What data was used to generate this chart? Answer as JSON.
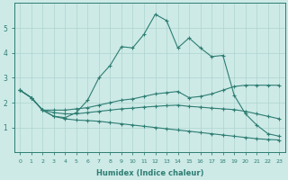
{
  "xlabel": "Humidex (Indice chaleur)",
  "background_color": "#cdeae7",
  "grid_color": "#aed4cf",
  "line_color": "#2e7d72",
  "xlim": [
    -0.5,
    23.5
  ],
  "ylim": [
    0,
    6.0
  ],
  "yticks": [
    1,
    2,
    3,
    4,
    5
  ],
  "xticks": [
    0,
    1,
    2,
    3,
    4,
    5,
    6,
    7,
    8,
    9,
    10,
    11,
    12,
    13,
    14,
    15,
    16,
    17,
    18,
    19,
    20,
    21,
    22,
    23
  ],
  "line1_x": [
    0,
    1,
    2,
    3,
    4,
    5,
    6,
    7,
    8,
    9,
    10,
    11,
    12,
    13,
    14,
    15,
    16,
    17,
    18,
    19,
    20,
    21,
    22,
    23
  ],
  "line1_y": [
    2.5,
    2.2,
    1.7,
    1.45,
    1.4,
    1.6,
    2.1,
    3.0,
    3.5,
    4.25,
    4.2,
    4.75,
    5.55,
    5.3,
    4.2,
    4.6,
    4.2,
    3.85,
    3.9,
    2.3,
    1.55,
    1.1,
    0.75,
    0.65
  ],
  "line2_x": [
    0,
    1,
    2,
    3,
    4,
    5,
    6,
    7,
    8,
    9,
    10,
    11,
    12,
    13,
    14,
    15,
    16,
    17,
    18,
    19,
    20,
    21,
    22,
    23
  ],
  "line2_y": [
    2.5,
    2.2,
    1.7,
    1.7,
    1.7,
    1.75,
    1.8,
    1.9,
    2.0,
    2.1,
    2.15,
    2.25,
    2.35,
    2.4,
    2.45,
    2.2,
    2.25,
    2.35,
    2.5,
    2.65,
    2.7,
    2.7,
    2.7,
    2.7
  ],
  "line3_x": [
    0,
    1,
    2,
    3,
    4,
    5,
    6,
    7,
    8,
    9,
    10,
    11,
    12,
    13,
    14,
    15,
    16,
    17,
    18,
    19,
    20,
    21,
    22,
    23
  ],
  "line3_y": [
    2.5,
    2.2,
    1.7,
    1.6,
    1.55,
    1.55,
    1.6,
    1.65,
    1.7,
    1.75,
    1.78,
    1.82,
    1.85,
    1.88,
    1.9,
    1.85,
    1.82,
    1.78,
    1.75,
    1.72,
    1.65,
    1.55,
    1.45,
    1.35
  ],
  "line4_x": [
    0,
    1,
    2,
    3,
    4,
    5,
    6,
    7,
    8,
    9,
    10,
    11,
    12,
    13,
    14,
    15,
    16,
    17,
    18,
    19,
    20,
    21,
    22,
    23
  ],
  "line4_y": [
    2.5,
    2.2,
    1.7,
    1.45,
    1.35,
    1.3,
    1.28,
    1.25,
    1.2,
    1.15,
    1.1,
    1.05,
    1.0,
    0.95,
    0.9,
    0.85,
    0.8,
    0.75,
    0.7,
    0.65,
    0.6,
    0.55,
    0.52,
    0.5
  ]
}
